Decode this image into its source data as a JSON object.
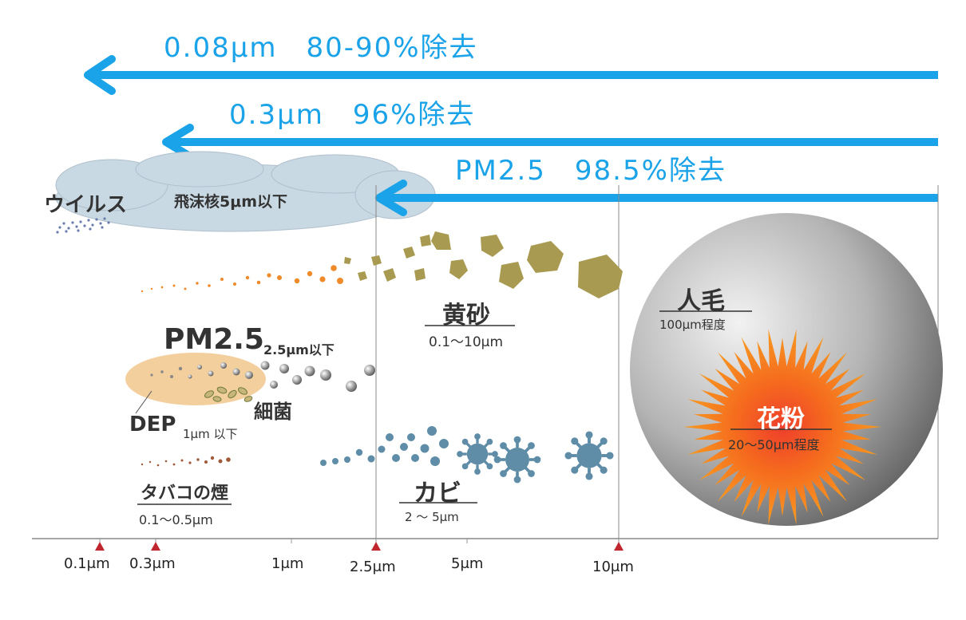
{
  "colors": {
    "arrow": "#1aa3e8",
    "marker": "#c0262d",
    "sand": "#a89a50",
    "mold": "#5f8da7",
    "pm_blob": "#f4cf9e",
    "pollen": "#f27a1e"
  },
  "arrows": [
    {
      "label": "0.08μm　80-90%除去"
    },
    {
      "label": "0.3μm　96%除去"
    },
    {
      "label": "PM2.5　98.5%除去"
    }
  ],
  "virus": {
    "label": "ウイルス"
  },
  "droplet": {
    "label": "飛沫核5μm以下"
  },
  "sand": {
    "label": "黄砂",
    "range": "0.1〜10μm"
  },
  "pm25": {
    "label": "PM2.5",
    "note": "2.5μm以下"
  },
  "bacteria": {
    "label": "細菌"
  },
  "dep": {
    "label": "DEP",
    "note": "1μm 以下"
  },
  "tobacco": {
    "label": "タバコの煙",
    "range": "0.1〜0.5μm"
  },
  "mold": {
    "label": "カビ",
    "range": "2 〜 5μm"
  },
  "hair": {
    "label": "人毛",
    "range": "100μm程度"
  },
  "pollen": {
    "label": "花粉",
    "range": "20〜50μm程度"
  },
  "axis_ticks": [
    "0.1μm",
    "0.3μm",
    "1μm",
    "2.5μm",
    "5μm",
    "10μm"
  ]
}
